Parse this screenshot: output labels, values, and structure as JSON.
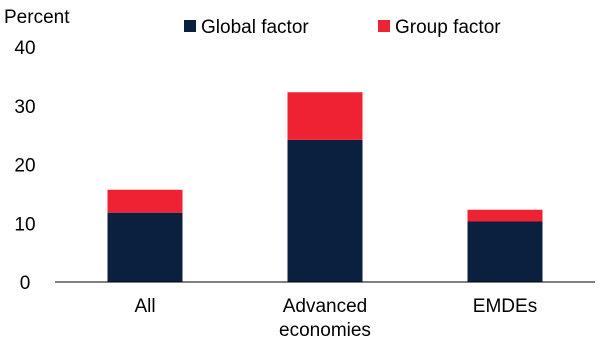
{
  "chart_data": {
    "type": "bar",
    "stacked": true,
    "unit_label": "Percent",
    "categories": [
      "All",
      "Advanced economies",
      "EMDEs"
    ],
    "category_lines": [
      [
        "All"
      ],
      [
        "Advanced",
        "economies"
      ],
      [
        "EMDEs"
      ]
    ],
    "series": [
      {
        "name": "Global factor",
        "color": "#0b1f3f",
        "values": [
          11.8,
          24.2,
          10.3
        ]
      },
      {
        "name": "Group factor",
        "color": "#ee2233",
        "values": [
          3.9,
          8.1,
          2.0
        ]
      }
    ],
    "ylim": [
      0,
      40
    ],
    "yticks": [
      0,
      10,
      20,
      30,
      40
    ],
    "grid": false,
    "legend_position": "top"
  }
}
